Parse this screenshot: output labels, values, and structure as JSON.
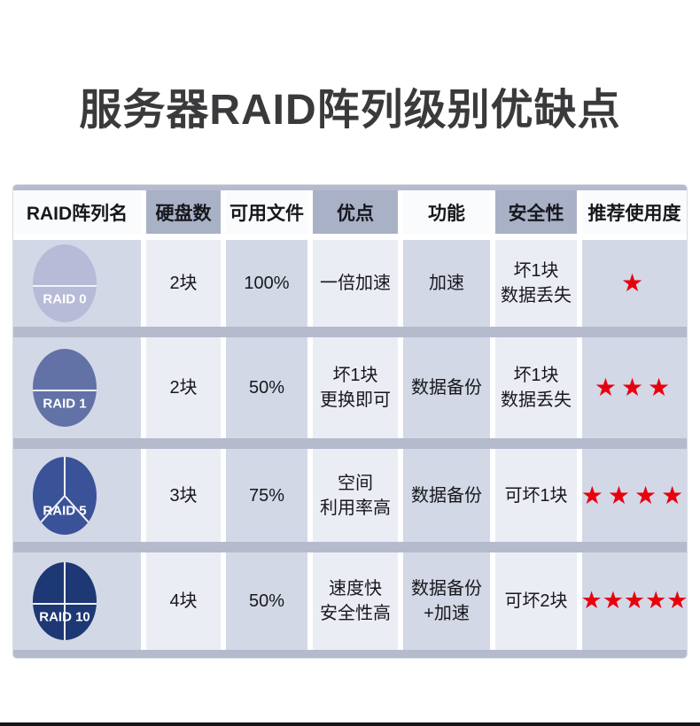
{
  "chart_data": {
    "type": "table",
    "title": "服务器RAID阵列级别优缺点",
    "columns": [
      "RAID阵列名",
      "硬盘数",
      "可用文件",
      "优点",
      "功能",
      "安全性",
      "推荐使用度"
    ],
    "star_color": "#e8000f",
    "legend_position": "none",
    "rows": [
      {
        "raid": "RAID 0",
        "icon": "pie-chart-2-segments-icon",
        "icon_color": "#b7bbd8",
        "disks": "2块",
        "usable": "100%",
        "advantage": "一倍加速",
        "function": "加速",
        "safety": "坏1块\n数据丢失",
        "stars": 1,
        "stars_display": "★"
      },
      {
        "raid": "RAID 1",
        "icon": "pie-chart-2-segments-icon",
        "icon_color": "#6272a7",
        "disks": "2块",
        "usable": "50%",
        "advantage": "坏1块\n更换即可",
        "function": "数据备份",
        "safety": "坏1块\n数据丢失",
        "stars": 3,
        "stars_display": "★★★"
      },
      {
        "raid": "RAID 5",
        "icon": "pie-chart-3-segments-icon",
        "icon_color": "#3a5298",
        "disks": "3块",
        "usable": "75%",
        "advantage": "空间\n利用率高",
        "function": "数据备份",
        "safety": "可坏1块",
        "stars": 4,
        "stars_display": "★★★★"
      },
      {
        "raid": "RAID 10",
        "icon": "pie-chart-4-segments-icon",
        "icon_color": "#1d3874",
        "disks": "4块",
        "usable": "50%",
        "advantage": "速度快\n安全性高",
        "function": "数据备份\n+加速",
        "safety": "可坏2块",
        "stars": 5,
        "stars_display": "★★★★★"
      }
    ]
  },
  "colors": {
    "page-bg": "#ffffff",
    "title-text": "#3a3a3c",
    "header-blue": "#a9b1c7",
    "header-light": "#fafbfc",
    "cell-dark": "#d3d8e6",
    "cell-light": "#eaedf4",
    "separator": "#b5bbcd",
    "table-border": "#d9dbe1",
    "circle-line": "#f2f3f8",
    "circle-text": "#ffffff",
    "bottom-bar": "#15151a"
  }
}
